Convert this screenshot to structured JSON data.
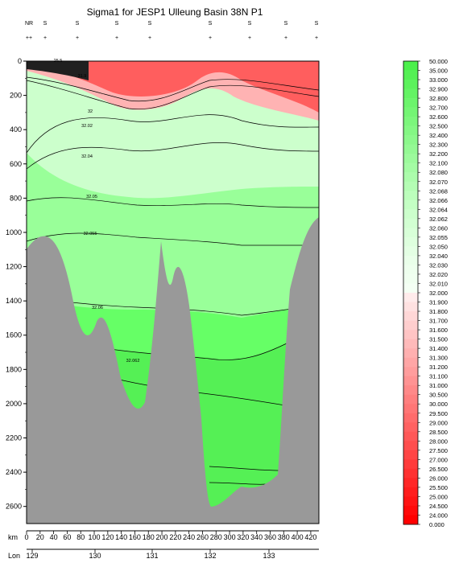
{
  "chart_data": {
    "type": "section",
    "title": "Sigma1 for JESP1 Ulleung Basin 38N P1",
    "y_axis": {
      "values": [
        0,
        200,
        400,
        600,
        800,
        1000,
        1200,
        1400,
        1600,
        1800,
        2000,
        2200,
        2400,
        2600
      ],
      "ylim": [
        0,
        2700
      ],
      "inverted": true
    },
    "x_km_axis": {
      "label": "km",
      "values": [
        0,
        20,
        40,
        60,
        80,
        100,
        120,
        140,
        160,
        180,
        200,
        220,
        240,
        260,
        280,
        300,
        320,
        340,
        360,
        380,
        400,
        420
      ],
      "xlim": [
        0,
        432
      ]
    },
    "x_lon_axis": {
      "label": "Lon",
      "values": [
        "129",
        "130",
        "131",
        "132",
        "133"
      ]
    },
    "station_labels": [
      "NR",
      "S",
      "S",
      "S",
      "S",
      "S",
      "S",
      "S",
      "S"
    ],
    "station_symbols": [
      "++",
      "+",
      "+",
      "+",
      "+",
      "+",
      "+",
      "+",
      "+"
    ],
    "contour_labels": [
      "25.5",
      "31.9",
      "32",
      "32.02",
      "32.04",
      "32.05",
      "32.055",
      "32.06",
      "32.062"
    ],
    "colorbar": {
      "labels": [
        "50.000",
        "35.000",
        "33.000",
        "32.900",
        "32.800",
        "32.700",
        "32.600",
        "32.500",
        "32.400",
        "32.300",
        "32.200",
        "32.100",
        "32.080",
        "32.070",
        "32.068",
        "32.066",
        "32.064",
        "32.062",
        "32.060",
        "32.055",
        "32.050",
        "32.040",
        "32.030",
        "32.020",
        "32.010",
        "32.000",
        "31.900",
        "31.800",
        "31.700",
        "31.600",
        "31.500",
        "31.400",
        "31.300",
        "31.200",
        "31.100",
        "31.000",
        "30.500",
        "30.000",
        "29.500",
        "29.000",
        "28.500",
        "28.000",
        "27.500",
        "27.000",
        "26.500",
        "26.000",
        "25.500",
        "25.000",
        "24.500",
        "24.000",
        "0.000"
      ]
    },
    "colors": {
      "seafloor": "#999999",
      "green_light": "#ccffcc",
      "green_mid": "#99ff99",
      "green_strong": "#66ff66",
      "green_deep": "#55f055",
      "pink": "#ffb3b3",
      "red": "#ff5e5e"
    }
  }
}
